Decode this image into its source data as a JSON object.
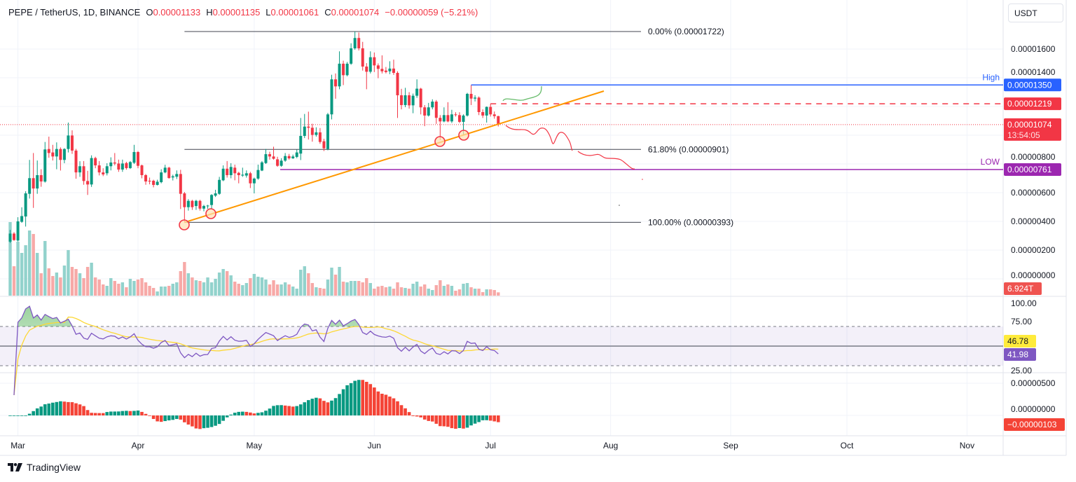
{
  "header": {
    "symbol": "PEPE / TetherUS, 1D, BINANCE",
    "o_label": "O",
    "o": "0.00001133",
    "h_label": "H",
    "h": "0.00001135",
    "l_label": "L",
    "l": "0.00001061",
    "c_label": "C",
    "c": "0.00001074",
    "change": "−0.00000059 (−5.21%)"
  },
  "currency_button": "USDT",
  "branding": "TradingView",
  "colors": {
    "up": "#089981",
    "down": "#f23645",
    "volume_up": "#92d2cc",
    "volume_down": "#f7a9a7",
    "high_line": "#2962ff",
    "low_line": "#9c27b0",
    "trendline": "#ff9800",
    "rsi": "#7e57c2",
    "rsi_ma": "#fdd835",
    "ao_up": "#089981",
    "ao_down": "#f44336"
  },
  "chart_data": {
    "type": "candlestick",
    "price_axis": {
      "ticks": [
        "0.00001600",
        "0.00001400",
        "0.00000800",
        "0.00000600",
        "0.00000400",
        "0.00000200",
        "0.00000000"
      ]
    },
    "time_axis": {
      "ticks": [
        "Mar",
        "Apr",
        "May",
        "Jun",
        "Jul",
        "Aug",
        "Sep",
        "Oct",
        "Nov"
      ]
    },
    "ohlc": [
      [
        2.59e-06,
        3.4e-06,
        2.5e-06,
        3.15e-06
      ],
      [
        3.15e-06,
        3.25e-06,
        2.65e-06,
        2.7e-06
      ],
      [
        2.67e-06,
        4.29e-06,
        2.6e-06,
        4e-06
      ],
      [
        3.97e-06,
        4.98e-06,
        3.9e-06,
        4.37e-06
      ],
      [
        4.34e-06,
        6.1e-06,
        3.64e-06,
        5.95e-06
      ],
      [
        5.92e-06,
        8.28e-06,
        5.59e-06,
        7.01e-06
      ],
      [
        7.01e-06,
        8.76e-06,
        4.94e-06,
        6.29e-06
      ],
      [
        6.29e-06,
        8.24e-06,
        5.92e-06,
        7.22e-06
      ],
      [
        7.22e-06,
        7.63e-06,
        6.41e-06,
        6.78e-06
      ],
      [
        6.77e-06,
        9.53e-06,
        6.7e-06,
        9.01e-06
      ],
      [
        9.04e-06,
        9.9e-06,
        8.43e-06,
        8.76e-06
      ],
      [
        8.8e-06,
        9.33e-06,
        8.24e-06,
        8.52e-06
      ],
      [
        8.52e-06,
        9.5e-06,
        7.63e-06,
        9.04e-06
      ],
      [
        9.04e-06,
        9.15e-06,
        7.54e-06,
        8.28e-06
      ],
      [
        8.28e-06,
        9.1e-06,
        8.05e-06,
        9.04e-06
      ],
      [
        9.04e-06,
        1.088e-05,
        8.8e-06,
        9.98e-06
      ],
      [
        9.98e-06,
        1.034e-05,
        8.7e-06,
        8.93e-06
      ],
      [
        8.93e-06,
        9.05e-06,
        6.97e-06,
        7.41e-06
      ],
      [
        7.41e-06,
        8.19e-06,
        7.1e-06,
        7.84e-06
      ],
      [
        7.84e-06,
        8.2e-06,
        6.55e-06,
        6.81e-06
      ],
      [
        6.81e-06,
        7.52e-06,
        5.84e-06,
        6.57e-06
      ],
      [
        6.57e-06,
        8.6e-06,
        6.4e-06,
        8.41e-06
      ],
      [
        8.41e-06,
        8.5e-06,
        7.7e-06,
        7.9e-06
      ],
      [
        7.9e-06,
        8.2e-06,
        7.2e-06,
        7.41e-06
      ],
      [
        7.41e-06,
        7.7e-06,
        7.15e-06,
        7.27e-06
      ],
      [
        7.35e-06,
        8.05e-06,
        7.2e-06,
        7.84e-06
      ],
      [
        7.84e-06,
        8.46e-06,
        7.55e-06,
        8.1e-06
      ],
      [
        8.1e-06,
        8.76e-06,
        7.9e-06,
        8.03e-06
      ],
      [
        8.03e-06,
        8.3e-06,
        7.45e-06,
        7.61e-06
      ],
      [
        7.61e-06,
        8.3e-06,
        7.45e-06,
        8.03e-06
      ],
      [
        8.06e-06,
        8.15e-06,
        7.6e-06,
        7.71e-06
      ],
      [
        7.71e-06,
        8.2e-06,
        7.65e-06,
        8.13e-06
      ],
      [
        8.08e-06,
        9.33e-06,
        8e-06,
        8.83e-06
      ],
      [
        8.83e-06,
        8.9e-06,
        7.7e-06,
        7.87e-06
      ],
      [
        7.9e-06,
        7.95e-06,
        7e-06,
        7.22e-06
      ],
      [
        7.22e-06,
        7.3e-06,
        6.55e-06,
        6.78e-06
      ],
      [
        6.83e-06,
        7.05e-06,
        6.58e-06,
        6.78e-06
      ],
      [
        6.83e-06,
        6.9e-06,
        6.37e-06,
        6.54e-06
      ],
      [
        6.54e-06,
        6.9e-06,
        6.5e-06,
        6.76e-06
      ],
      [
        6.73e-06,
        7.63e-06,
        6.65e-06,
        7.41e-06
      ],
      [
        7.41e-06,
        7.94e-06,
        7.35e-06,
        7.74e-06
      ],
      [
        7.74e-06,
        7.8e-06,
        6.97e-06,
        7.02e-06
      ],
      [
        7.06e-06,
        7.25e-06,
        6.85e-06,
        7.14e-06
      ],
      [
        7.11e-06,
        7.55e-06,
        6.95e-06,
        7.3e-06
      ],
      [
        7.3e-06,
        7.59e-06,
        4.86e-06,
        5.92e-06
      ],
      [
        5.95e-06,
        6.05e-06,
        3.93e-06,
        4.99e-06
      ],
      [
        4.99e-06,
        5.55e-06,
        4.75e-06,
        5.43e-06
      ],
      [
        5.43e-06,
        5.5e-06,
        4.8e-06,
        4.99e-06
      ],
      [
        5.07e-06,
        5.5e-06,
        4.8e-06,
        5.43e-06
      ],
      [
        5.43e-06,
        5.5e-06,
        4.75e-06,
        4.89e-06
      ],
      [
        4.89e-06,
        5.15e-06,
        4.7e-06,
        5.07e-06
      ],
      [
        5.07e-06,
        5.15e-06,
        4.88e-06,
        5.1e-06
      ],
      [
        5.14e-06,
        5.9e-06,
        4.9e-06,
        5.84e-06
      ],
      [
        5.79e-06,
        6.2e-06,
        5.7e-06,
        5.95e-06
      ],
      [
        5.92e-06,
        7.1e-06,
        5.85e-06,
        6.89e-06
      ],
      [
        6.86e-06,
        7.9e-06,
        6.8e-06,
        7.67e-06
      ],
      [
        7.67e-06,
        8.2e-06,
        7.05e-06,
        7.22e-06
      ],
      [
        7.22e-06,
        8.05e-06,
        7e-06,
        7.79e-06
      ],
      [
        7.74e-06,
        7.95e-06,
        6.86e-06,
        7.35e-06
      ],
      [
        7.38e-06,
        7.45e-06,
        6.65e-06,
        7.22e-06
      ],
      [
        7.19e-06,
        7.74e-06,
        7.1e-06,
        7.25e-06
      ],
      [
        7.19e-06,
        7.55e-06,
        7.05e-06,
        7.35e-06
      ],
      [
        7.35e-06,
        7.45e-06,
        6.32e-06,
        6.65e-06
      ],
      [
        6.65e-06,
        7.05e-06,
        5.95e-06,
        6.98e-06
      ],
      [
        6.98e-06,
        7.95e-06,
        6.9e-06,
        7.58e-06
      ],
      [
        7.54e-06,
        8.2e-06,
        7.5e-06,
        8.11e-06
      ],
      [
        8.06e-06,
        9.04e-06,
        8e-06,
        8.68e-06
      ],
      [
        8.68e-06,
        8.85e-06,
        8.3e-06,
        8.52e-06
      ],
      [
        8.52e-06,
        9.2e-06,
        8.3e-06,
        8.36e-06
      ],
      [
        8.32e-06,
        8.5e-06,
        7.8e-06,
        7.87e-06
      ],
      [
        7.87e-06,
        8.4e-06,
        7.8e-06,
        8.23e-06
      ],
      [
        8.23e-06,
        8.76e-06,
        8.15e-06,
        8.55e-06
      ],
      [
        8.55e-06,
        8.7e-06,
        8.3e-06,
        8.39e-06
      ],
      [
        8.39e-06,
        8.65e-06,
        8.35e-06,
        8.52e-06
      ],
      [
        8.49e-06,
        9e-06,
        8.4e-06,
        8.8e-06
      ],
      [
        8.72e-06,
        1.12e-05,
        8.27e-06,
        9.95e-06
      ],
      [
        9.95e-06,
        1.148e-05,
        9.8e-06,
        1.06e-05
      ],
      [
        1.06e-05,
        1.164e-05,
        9.7e-06,
        1.052e-05
      ],
      [
        1.052e-05,
        1.08e-05,
        9.55e-06,
        1.002e-05
      ],
      [
        1.002e-05,
        1.055e-05,
        9.9e-06,
        1.02e-05
      ],
      [
        1.02e-05,
        1.05e-05,
        9.4e-06,
        9.53e-06
      ],
      [
        9.58e-06,
        9.75e-06,
        8.9e-06,
        9.09e-06
      ],
      [
        9.04e-06,
        1.155e-05,
        8.95e-06,
        1.145e-05
      ],
      [
        1.145e-05,
        1.421e-05,
        1.11e-05,
        1.389e-05
      ],
      [
        1.389e-05,
        1.43e-05,
        1.254e-05,
        1.34e-05
      ],
      [
        1.34e-05,
        1.584e-05,
        1.32e-05,
        1.498e-05
      ],
      [
        1.498e-05,
        1.519e-05,
        1.349e-05,
        1.418e-05
      ],
      [
        1.418e-05,
        1.51e-05,
        1.41e-05,
        1.498e-05
      ],
      [
        1.498e-05,
        1.64e-05,
        1.49e-05,
        1.605e-05
      ],
      [
        1.605e-05,
        1.722e-05,
        1.595e-05,
        1.677e-05
      ],
      [
        1.677e-05,
        1.715e-05,
        1.59e-05,
        1.605e-05
      ],
      [
        1.605e-05,
        1.65e-05,
        1.45e-05,
        1.478e-05
      ],
      [
        1.478e-05,
        1.502e-05,
        1.32e-05,
        1.442e-05
      ],
      [
        1.442e-05,
        1.584e-05,
        1.43e-05,
        1.543e-05
      ],
      [
        1.543e-05,
        1.576e-05,
        1.44e-05,
        1.486e-05
      ],
      [
        1.486e-05,
        1.5e-05,
        1.397e-05,
        1.462e-05
      ],
      [
        1.462e-05,
        1.556e-05,
        1.43e-05,
        1.445e-05
      ],
      [
        1.45e-05,
        1.475e-05,
        1.43e-05,
        1.44e-05
      ],
      [
        1.445e-05,
        1.515e-05,
        1.425e-05,
        1.464e-05
      ],
      [
        1.464e-05,
        1.526e-05,
        1.42e-05,
        1.434e-05
      ],
      [
        1.434e-05,
        1.445e-05,
        1.12e-05,
        1.278e-05
      ],
      [
        1.278e-05,
        1.323e-05,
        1.18e-05,
        1.21e-05
      ],
      [
        1.21e-05,
        1.33e-05,
        1.195e-05,
        1.278e-05
      ],
      [
        1.278e-05,
        1.3e-05,
        1.185e-05,
        1.208e-05
      ],
      [
        1.208e-05,
        1.29e-05,
        1.153e-05,
        1.275e-05
      ],
      [
        1.275e-05,
        1.389e-05,
        1.26e-05,
        1.324e-05
      ],
      [
        1.324e-05,
        1.33e-05,
        1.145e-05,
        1.194e-05
      ],
      [
        1.194e-05,
        1.21e-05,
        1.063e-05,
        1.137e-05
      ],
      [
        1.137e-05,
        1.225e-05,
        1.13e-05,
        1.194e-05
      ],
      [
        1.194e-05,
        1.25e-05,
        1.18e-05,
        1.234e-05
      ],
      [
        1.234e-05,
        1.245e-05,
        1.079e-05,
        1.121e-05
      ],
      [
        1.121e-05,
        1.14e-05,
        9.66e-06,
        1.096e-05
      ],
      [
        1.096e-05,
        1.194e-05,
        1.09e-05,
        1.14e-05
      ],
      [
        1.14e-05,
        1.23e-05,
        1.09e-05,
        1.096e-05
      ],
      [
        1.096e-05,
        1.177e-05,
        1.085e-05,
        1.145e-05
      ],
      [
        1.145e-05,
        1.16e-05,
        1.13e-05,
        1.14e-05
      ],
      [
        1.14e-05,
        1.16e-05,
        1.085e-05,
        1.093e-05
      ],
      [
        1.093e-05,
        1.145e-05,
        9.98e-06,
        1.137e-05
      ],
      [
        1.137e-05,
        1.295e-05,
        1.13e-05,
        1.288e-05
      ],
      [
        1.288e-05,
        1.35e-05,
        1.21e-05,
        1.255e-05
      ],
      [
        1.255e-05,
        1.278e-05,
        1.235e-05,
        1.262e-05
      ],
      [
        1.262e-05,
        1.27e-05,
        1.14e-05,
        1.161e-05
      ],
      [
        1.161e-05,
        1.18e-05,
        1.12e-05,
        1.137e-05
      ],
      [
        1.137e-05,
        1.2e-05,
        1.088e-05,
        1.197e-05
      ],
      [
        1.197e-05,
        1.219e-05,
        1.13e-05,
        1.145e-05
      ],
      [
        1.145e-05,
        1.165e-05,
        1.115e-05,
        1.133e-05
      ],
      [
        1.133e-05,
        1.135e-05,
        1.061e-05,
        1.074e-05
      ]
    ],
    "volume_unit": "T",
    "volume": [
      154.4,
      61.7,
      113.2,
      89.7,
      105.8,
      136.7,
      129.4,
      89.7,
      47.0,
      114.7,
      57.3,
      41.2,
      48.5,
      38.2,
      63.2,
      95.6,
      60.3,
      55.9,
      47.0,
      36.8,
      60.3,
      69.1,
      38.2,
      33.8,
      23.5,
      20.6,
      36.8,
      30.9,
      25.0,
      27.9,
      17.6,
      35.3,
      30.9,
      33.8,
      36.8,
      27.9,
      20.6,
      16.2,
      8.8,
      19.1,
      19.1,
      20.6,
      25.0,
      27.9,
      51.5,
      70.6,
      47.0,
      38.2,
      32.3,
      30.9,
      27.9,
      38.2,
      27.9,
      35.3,
      48.5,
      55.9,
      51.5,
      42.6,
      29.4,
      25.0,
      22.1,
      26.5,
      36.8,
      45.6,
      39.7,
      38.2,
      33.8,
      23.5,
      32.3,
      23.5,
      23.5,
      27.9,
      23.5,
      19.1,
      14.7,
      54.4,
      61.7,
      47.0,
      26.5,
      17.6,
      16.2,
      14.7,
      33.8,
      58.8,
      44.1,
      60.3,
      29.4,
      27.9,
      30.9,
      30.9,
      30.9,
      27.9,
      36.8,
      26.5,
      14.7,
      19.1,
      20.6,
      17.6,
      19.1,
      14.7,
      27.9,
      17.6,
      16.2,
      14.7,
      25.0,
      29.4,
      19.1,
      23.5,
      14.7,
      11.8,
      22.1,
      32.3,
      20.6,
      23.5,
      20.6,
      10.3,
      13.2,
      25.0,
      26.5,
      17.6,
      14.7,
      14.7,
      7.4,
      13.2,
      13.2,
      11.8,
      6.924
    ],
    "price_labels": {
      "high": "0.00001350",
      "resistance": "0.00001219",
      "last": "0.00001074",
      "countdown": "13:54:05",
      "low": "0.00000761",
      "volume_last": "6.924T"
    },
    "drawings": {
      "fib": [
        {
          "price": 1.722e-05,
          "label": "0.00% (0.00001722)"
        },
        {
          "price": 9.01e-06,
          "label": "61.80% (0.00000901)"
        },
        {
          "price": 3.93e-06,
          "label": "100.00% (0.00000393)"
        }
      ],
      "high_label": "High",
      "high_price": 1.35e-05,
      "resistance_price": 1.219e-05,
      "low_label": "LOW",
      "low_price": 7.61e-06
    },
    "rsi_pane": {
      "ticks": [
        "100.00",
        "75.00",
        "25.00"
      ],
      "upper_band": 70,
      "middle": 50,
      "lower_band": 30,
      "ma_value": "46.78",
      "rsi_value": "41.98"
    },
    "ao_pane": {
      "ticks": [
        "0.00000500",
        "0.00000000"
      ],
      "value": "−0.00000103"
    }
  }
}
